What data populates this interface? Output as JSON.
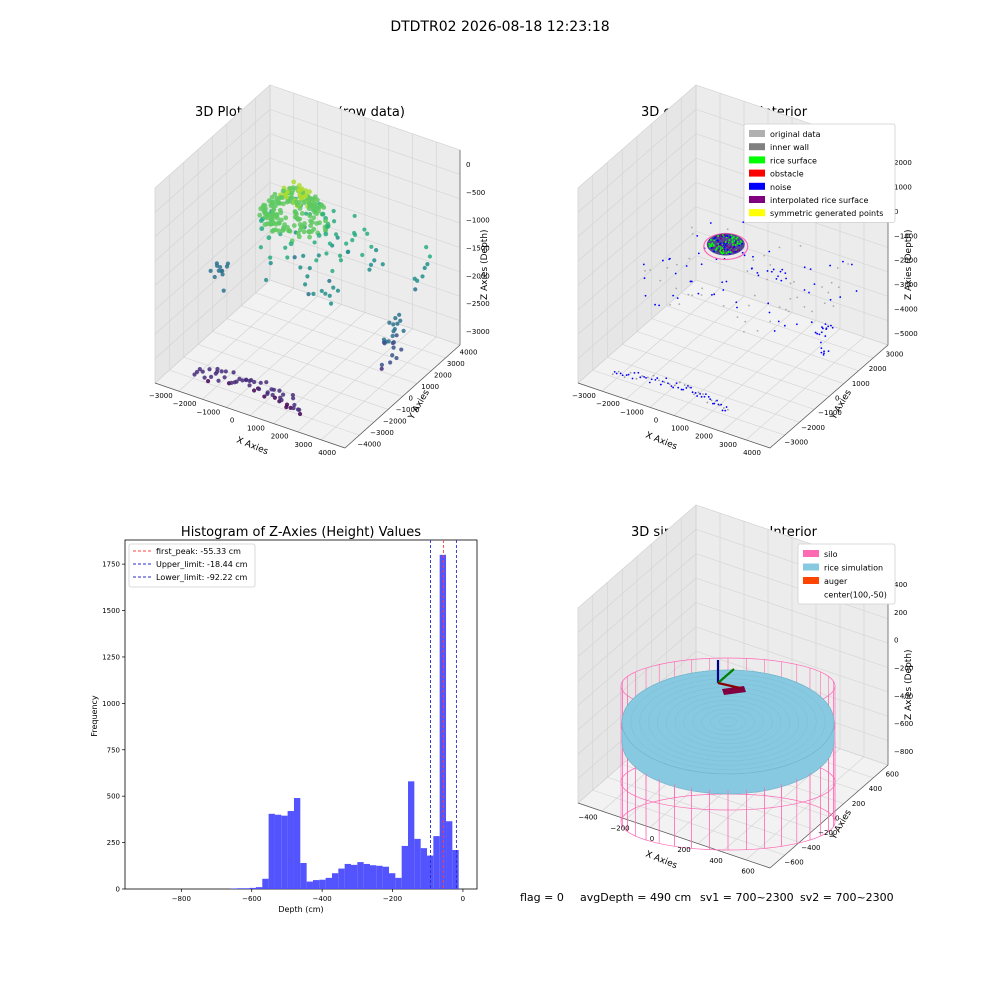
{
  "suptitle": "DTDTR02 2026-08-18 12:23:18",
  "status_line": {
    "flag": "flag = 0",
    "avg_depth": "avgDepth = 490 cm",
    "sv1": "sv1 = 700~2300",
    "sv2": "sv2 = 700~2300"
  },
  "colors": {
    "histogram_bar": "#4b4bff",
    "first_peak": "#ff4040",
    "limit_lines": "#2a2ac8",
    "silo": "#ff69b4",
    "rice": "#87c9e0",
    "auger": "#ff4500"
  },
  "chart_data": [
    {
      "id": "raw",
      "type": "scatter3d",
      "title": "3D Plot of Silo Interior(row data)",
      "xlabel": "X Axies",
      "ylabel": "Y Axies",
      "zlabel": "Z Axies (Depth)",
      "x_ticks": [
        "−3000",
        "−2000",
        "−1000",
        "0",
        "1000",
        "2000",
        "3000",
        "4000"
      ],
      "y_ticks": [
        "−4000",
        "−3000",
        "−2000",
        "−1000",
        "0",
        "1000",
        "2000",
        "3000",
        "4000"
      ],
      "z_ticks": [
        "−3000",
        "−2500",
        "−2000",
        "−1500",
        "−1000",
        "−500",
        "0"
      ],
      "xlim": [
        -3500,
        4000
      ],
      "ylim": [
        -4000,
        4000
      ],
      "zlim": [
        -3300,
        0
      ],
      "colormap": "viridis",
      "grid": true
    },
    {
      "id": "classify",
      "type": "scatter3d",
      "title": "3D classify of Silo Interior",
      "xlabel": "X Axies",
      "ylabel": "Y Axies",
      "zlabel": "Z Axies (Depth)",
      "x_ticks": [
        "−3000",
        "−2000",
        "−1000",
        "0",
        "1000",
        "2000",
        "3000",
        "4000"
      ],
      "y_ticks": [
        "−3000",
        "−2000",
        "−1000",
        "0",
        "1000",
        "2000",
        "3000"
      ],
      "z_ticks": [
        "−5000",
        "−4000",
        "−3000",
        "−2000",
        "−1000",
        "0",
        "1000",
        "2000"
      ],
      "xlim": [
        -3500,
        4000
      ],
      "ylim": [
        -3500,
        3500
      ],
      "zlim": [
        -5000,
        2000
      ],
      "legend_position": "top-right",
      "legend": [
        {
          "label": "original data",
          "color": "#b0b0b0"
        },
        {
          "label": "inner wall",
          "color": "#808080"
        },
        {
          "label": "rice surface",
          "color": "#00ff00"
        },
        {
          "label": "obstacle",
          "color": "#ff0000"
        },
        {
          "label": "noise",
          "color": "#0000ff"
        },
        {
          "label": "interpolated rice surface",
          "color": "#800080"
        },
        {
          "label": "symmetric generated points",
          "color": "#ffff00"
        }
      ],
      "grid": true
    },
    {
      "id": "hist",
      "type": "bar",
      "title": "Histogram of Z-Axies (Height) Values",
      "xlabel": "Depth (cm)",
      "ylabel": "Frequency",
      "xlim": [
        -960,
        40
      ],
      "ylim": [
        0,
        1880
      ],
      "x_ticks": [
        -800,
        -600,
        -400,
        -200,
        0
      ],
      "y_ticks": [
        0,
        250,
        500,
        750,
        1000,
        1250,
        1500,
        1750
      ],
      "bin_width": 18,
      "bins": [
        {
          "x": -660,
          "value": 3
        },
        {
          "x": -642,
          "value": 4
        },
        {
          "x": -624,
          "value": 4
        },
        {
          "x": -606,
          "value": 6
        },
        {
          "x": -588,
          "value": 10
        },
        {
          "x": -570,
          "value": 55
        },
        {
          "x": -552,
          "value": 405
        },
        {
          "x": -534,
          "value": 400
        },
        {
          "x": -516,
          "value": 395
        },
        {
          "x": -498,
          "value": 420
        },
        {
          "x": -480,
          "value": 490
        },
        {
          "x": -462,
          "value": 140
        },
        {
          "x": -444,
          "value": 40
        },
        {
          "x": -426,
          "value": 48
        },
        {
          "x": -408,
          "value": 50
        },
        {
          "x": -390,
          "value": 60
        },
        {
          "x": -372,
          "value": 85
        },
        {
          "x": -354,
          "value": 110
        },
        {
          "x": -336,
          "value": 135
        },
        {
          "x": -318,
          "value": 130
        },
        {
          "x": -300,
          "value": 145
        },
        {
          "x": -282,
          "value": 135
        },
        {
          "x": -264,
          "value": 128
        },
        {
          "x": -246,
          "value": 125
        },
        {
          "x": -228,
          "value": 120
        },
        {
          "x": -210,
          "value": 85
        },
        {
          "x": -192,
          "value": 60
        },
        {
          "x": -174,
          "value": 232
        },
        {
          "x": -156,
          "value": 580
        },
        {
          "x": -138,
          "value": 270
        },
        {
          "x": -120,
          "value": 220
        },
        {
          "x": -102,
          "value": 180
        },
        {
          "x": -84,
          "value": 285
        },
        {
          "x": -66,
          "value": 1800
        },
        {
          "x": -48,
          "value": 365
        },
        {
          "x": -30,
          "value": 210
        }
      ],
      "lines": [
        {
          "label": "first_peak: -55.33 cm",
          "x": -55.33,
          "style": "dashed",
          "role": "peak"
        },
        {
          "label": "Upper_limit: -18.44 cm",
          "x": -18.44,
          "style": "dashed",
          "role": "limit"
        },
        {
          "label": "Lower_limit: -92.22 cm",
          "x": -92.22,
          "style": "dashed",
          "role": "limit"
        }
      ],
      "legend_position": "top-left"
    },
    {
      "id": "sim",
      "type": "surface3d",
      "title": "3D simulation of Silo Interior",
      "xlabel": "X Axies",
      "ylabel": "Y Axies",
      "zlabel": "Z Axies (Depth)",
      "x_ticks": [
        "−400",
        "−200",
        "0",
        "200",
        "400",
        "600"
      ],
      "y_ticks": [
        "−600",
        "−400",
        "−200",
        "0",
        "200",
        "400",
        "600"
      ],
      "z_ticks": [
        "−800",
        "−600",
        "−400",
        "−200",
        "0",
        "200",
        "400"
      ],
      "xlim": [
        -500,
        700
      ],
      "ylim": [
        -700,
        700
      ],
      "zlim": [
        -900,
        450
      ],
      "legend_position": "top-right",
      "legend": [
        {
          "label": "silo",
          "color": "#ff69b4"
        },
        {
          "label": "rice simulation",
          "color": "#87c9e0"
        },
        {
          "label": "auger",
          "color": "#ff4500"
        },
        {
          "label": "center(100,-50)",
          "color": ""
        }
      ],
      "grid": true
    }
  ]
}
